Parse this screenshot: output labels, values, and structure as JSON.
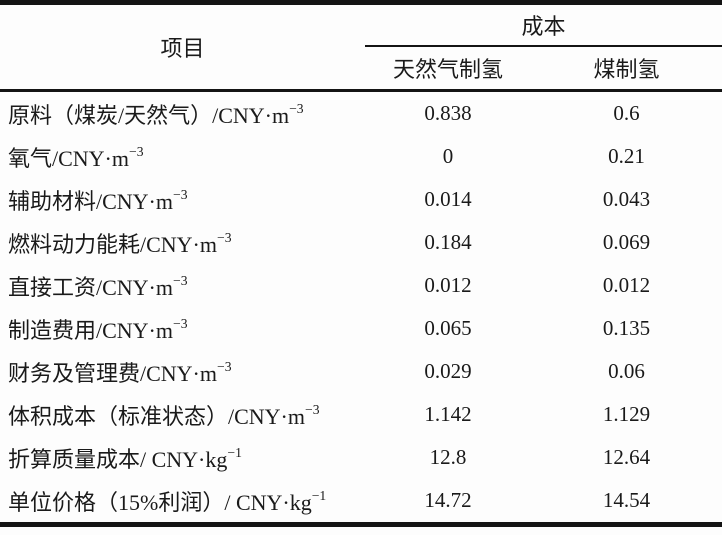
{
  "page": {
    "background": "#fdfdfd",
    "text_color": "#1a1a1a",
    "rule_color": "#141414"
  },
  "table": {
    "header": {
      "item_label": "项目",
      "cost_group_label": "成本",
      "col_gas": "天然气制氢",
      "col_coal": "煤制氢"
    },
    "rows": [
      {
        "item": "原料（煤炭/天然气）/CNY·m",
        "sup": "−3",
        "gas": "0.838",
        "coal": "0.6"
      },
      {
        "item": "氧气/CNY·m",
        "sup": "−3",
        "gas": "0",
        "coal": "0.21"
      },
      {
        "item": "辅助材料/CNY·m",
        "sup": "−3",
        "gas": "0.014",
        "coal": "0.043"
      },
      {
        "item": "燃料动力能耗/CNY·m",
        "sup": "−3",
        "gas": "0.184",
        "coal": "0.069"
      },
      {
        "item": "直接工资/CNY·m",
        "sup": "−3",
        "gas": "0.012",
        "coal": "0.012"
      },
      {
        "item": "制造费用/CNY·m",
        "sup": "−3",
        "gas": "0.065",
        "coal": "0.135"
      },
      {
        "item": "财务及管理费/CNY·m",
        "sup": "−3",
        "gas": "0.029",
        "coal": "0.06"
      },
      {
        "item": "体积成本（标准状态）/CNY·m",
        "sup": "−3",
        "gas": "1.142",
        "coal": "1.129"
      },
      {
        "item": "折算质量成本/ CNY·kg",
        "sup": "−1",
        "gas": "12.8",
        "coal": "12.64"
      },
      {
        "item": "单位价格（15%利润）/ CNY·kg",
        "sup": "−1",
        "gas": "14.72",
        "coal": "14.54"
      }
    ]
  }
}
